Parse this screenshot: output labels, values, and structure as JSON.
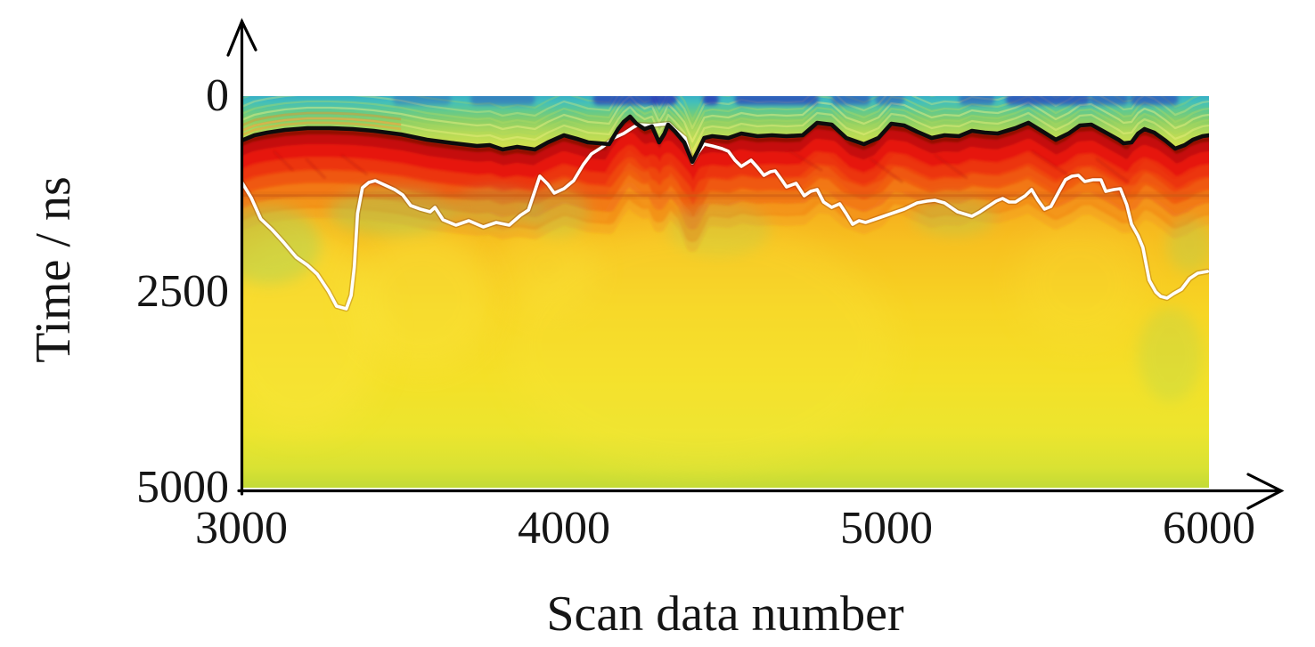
{
  "figure": {
    "background": "#ffffff",
    "kind": "GPR radargram (B-scan) pseudocolor heatmap with two picked horizon lines",
    "axis_color": "#000000",
    "upper_horizon_color": "#0d0d0d",
    "lower_horizon_color": "#ffffff"
  },
  "chart_data": {
    "type": "heatmap",
    "title": "",
    "xlabel": "Scan data number",
    "ylabel": "Time / ns",
    "xlim": [
      3000,
      6000
    ],
    "ylim": [
      0,
      5000
    ],
    "y_axis_direction": "down (0 ns at top, 5000 ns at bottom)",
    "x_ticks": [
      "3000",
      "4000",
      "5000",
      "6000"
    ],
    "x_tick_values": [
      3000,
      4000,
      5000,
      6000
    ],
    "y_ticks": [
      "0",
      "2500",
      "5000"
    ],
    "y_tick_values": [
      0,
      2500,
      5000
    ],
    "grid": false,
    "legend": "none",
    "colormap": "jet-like: dark blue, cyan, green, yellow-green, yellow, orange, red",
    "bands_description": {
      "surface_band": "0 to ~400 ns: cyan-teal grading to green and yellow-green, with terrain-parallel ripple layering; sporadic dark blue patches within the first ~120 ns",
      "reflector_band": "bright red high-amplitude band directly beneath the black horizon, fading through orange with depth",
      "deep_band": "orange grading to yellow with depth; pale yellow-green band near 5000 ns",
      "horizontal_artifact_ns": 1270,
      "vertical_artifact_scan": 4400
    },
    "series": [
      {
        "name": "upper-horizon-pick",
        "style": "solid black line",
        "color": "#0d0d0d",
        "points": [
          [
            3000,
            568
          ],
          [
            3040,
            500
          ],
          [
            3080,
            466
          ],
          [
            3135,
            432
          ],
          [
            3205,
            409
          ],
          [
            3275,
            409
          ],
          [
            3345,
            420
          ],
          [
            3410,
            443
          ],
          [
            3495,
            489
          ],
          [
            3575,
            557
          ],
          [
            3660,
            602
          ],
          [
            3730,
            636
          ],
          [
            3770,
            625
          ],
          [
            3810,
            682
          ],
          [
            3855,
            648
          ],
          [
            3910,
            682
          ],
          [
            3950,
            591
          ],
          [
            4000,
            500
          ],
          [
            4040,
            545
          ],
          [
            4075,
            591
          ],
          [
            4110,
            602
          ],
          [
            4140,
            614
          ],
          [
            4168,
            420
          ],
          [
            4185,
            330
          ],
          [
            4205,
            261
          ],
          [
            4225,
            352
          ],
          [
            4250,
            420
          ],
          [
            4273,
            386
          ],
          [
            4295,
            591
          ],
          [
            4312,
            477
          ],
          [
            4323,
            364
          ],
          [
            4345,
            455
          ],
          [
            4373,
            591
          ],
          [
            4398,
            841
          ],
          [
            4415,
            705
          ],
          [
            4435,
            534
          ],
          [
            4460,
            511
          ],
          [
            4510,
            534
          ],
          [
            4550,
            477
          ],
          [
            4600,
            511
          ],
          [
            4645,
            500
          ],
          [
            4690,
            511
          ],
          [
            4740,
            500
          ],
          [
            4785,
            341
          ],
          [
            4830,
            364
          ],
          [
            4875,
            534
          ],
          [
            4930,
            614
          ],
          [
            4975,
            534
          ],
          [
            5015,
            352
          ],
          [
            5055,
            375
          ],
          [
            5095,
            455
          ],
          [
            5140,
            534
          ],
          [
            5180,
            500
          ],
          [
            5225,
            511
          ],
          [
            5265,
            443
          ],
          [
            5305,
            466
          ],
          [
            5345,
            477
          ],
          [
            5400,
            409
          ],
          [
            5440,
            341
          ],
          [
            5485,
            455
          ],
          [
            5525,
            557
          ],
          [
            5565,
            477
          ],
          [
            5600,
            375
          ],
          [
            5635,
            364
          ],
          [
            5675,
            455
          ],
          [
            5720,
            557
          ],
          [
            5735,
            602
          ],
          [
            5760,
            591
          ],
          [
            5780,
            477
          ],
          [
            5800,
            420
          ],
          [
            5830,
            466
          ],
          [
            5865,
            568
          ],
          [
            5895,
            670
          ],
          [
            5925,
            625
          ],
          [
            5950,
            557
          ],
          [
            5980,
            511
          ],
          [
            6000,
            500
          ]
        ]
      },
      {
        "name": "lower-horizon-pick",
        "style": "solid white line",
        "color": "#ffffff",
        "points": [
          [
            3000,
            1091
          ],
          [
            3030,
            1295
          ],
          [
            3060,
            1568
          ],
          [
            3095,
            1705
          ],
          [
            3130,
            1864
          ],
          [
            3170,
            2057
          ],
          [
            3205,
            2159
          ],
          [
            3235,
            2273
          ],
          [
            3270,
            2489
          ],
          [
            3295,
            2682
          ],
          [
            3325,
            2716
          ],
          [
            3340,
            2545
          ],
          [
            3350,
            2182
          ],
          [
            3360,
            1500
          ],
          [
            3375,
            1170
          ],
          [
            3395,
            1102
          ],
          [
            3415,
            1080
          ],
          [
            3445,
            1136
          ],
          [
            3475,
            1193
          ],
          [
            3500,
            1261
          ],
          [
            3525,
            1398
          ],
          [
            3555,
            1443
          ],
          [
            3585,
            1477
          ],
          [
            3600,
            1420
          ],
          [
            3625,
            1580
          ],
          [
            3665,
            1648
          ],
          [
            3705,
            1591
          ],
          [
            3750,
            1670
          ],
          [
            3790,
            1614
          ],
          [
            3830,
            1648
          ],
          [
            3865,
            1523
          ],
          [
            3890,
            1455
          ],
          [
            3925,
            1023
          ],
          [
            3950,
            1125
          ],
          [
            3970,
            1239
          ],
          [
            4000,
            1182
          ],
          [
            4030,
            1080
          ],
          [
            4060,
            875
          ],
          [
            4085,
            739
          ],
          [
            4120,
            648
          ],
          [
            4155,
            534
          ],
          [
            4185,
            477
          ],
          [
            4215,
            398
          ],
          [
            4230,
            364
          ],
          [
            4270,
            375
          ],
          [
            4295,
            364
          ],
          [
            4325,
            352
          ],
          [
            4345,
            432
          ],
          [
            4375,
            534
          ],
          [
            4398,
            852
          ],
          [
            4415,
            727
          ],
          [
            4435,
            614
          ],
          [
            4460,
            636
          ],
          [
            4490,
            670
          ],
          [
            4510,
            705
          ],
          [
            4530,
            818
          ],
          [
            4550,
            898
          ],
          [
            4580,
            818
          ],
          [
            4600,
            909
          ],
          [
            4620,
            1011
          ],
          [
            4640,
            966
          ],
          [
            4655,
            955
          ],
          [
            4675,
            1068
          ],
          [
            4690,
            1159
          ],
          [
            4720,
            1114
          ],
          [
            4745,
            1273
          ],
          [
            4765,
            1216
          ],
          [
            4785,
            1193
          ],
          [
            4805,
            1352
          ],
          [
            4830,
            1420
          ],
          [
            4855,
            1375
          ],
          [
            4875,
            1500
          ],
          [
            4895,
            1636
          ],
          [
            4915,
            1591
          ],
          [
            4935,
            1614
          ],
          [
            4975,
            1557
          ],
          [
            5015,
            1500
          ],
          [
            5055,
            1443
          ],
          [
            5095,
            1364
          ],
          [
            5125,
            1341
          ],
          [
            5150,
            1330
          ],
          [
            5180,
            1364
          ],
          [
            5220,
            1477
          ],
          [
            5265,
            1534
          ],
          [
            5290,
            1477
          ],
          [
            5315,
            1409
          ],
          [
            5340,
            1341
          ],
          [
            5360,
            1307
          ],
          [
            5380,
            1352
          ],
          [
            5400,
            1352
          ],
          [
            5430,
            1273
          ],
          [
            5450,
            1193
          ],
          [
            5470,
            1330
          ],
          [
            5490,
            1443
          ],
          [
            5510,
            1409
          ],
          [
            5535,
            1216
          ],
          [
            5555,
            1068
          ],
          [
            5575,
            1023
          ],
          [
            5595,
            1011
          ],
          [
            5615,
            1091
          ],
          [
            5640,
            1068
          ],
          [
            5665,
            1068
          ],
          [
            5680,
            1216
          ],
          [
            5705,
            1193
          ],
          [
            5725,
            1182
          ],
          [
            5745,
            1386
          ],
          [
            5760,
            1636
          ],
          [
            5780,
            1784
          ],
          [
            5795,
            1932
          ],
          [
            5815,
            2352
          ],
          [
            5835,
            2500
          ],
          [
            5850,
            2557
          ],
          [
            5870,
            2580
          ],
          [
            5890,
            2523
          ],
          [
            5915,
            2466
          ],
          [
            5940,
            2330
          ],
          [
            5965,
            2261
          ],
          [
            5995,
            2239
          ]
        ]
      }
    ],
    "render": {
      "depth_gradient": [
        [
          0,
          "#f07a15"
        ],
        [
          0.1,
          "#f28a1a"
        ],
        [
          0.22,
          "#f5a31d"
        ],
        [
          0.38,
          "#f7c120"
        ],
        [
          0.55,
          "#f7d524"
        ],
        [
          0.72,
          "#f4e028"
        ],
        [
          0.86,
          "#ece52e"
        ],
        [
          0.95,
          "#d9e233"
        ],
        [
          1,
          "#c3da36"
        ]
      ],
      "surface_gradient": [
        [
          0,
          "#38b0c6"
        ],
        [
          0.08,
          "#43bfba"
        ],
        [
          0.2,
          "#63c98c"
        ],
        [
          0.33,
          "#8ccf66"
        ],
        [
          0.48,
          "#b3d958"
        ],
        [
          0.62,
          "#cbdf50"
        ],
        [
          0.8,
          "#dbe24b"
        ],
        [
          1,
          "#e2e44a"
        ]
      ],
      "red_band_strokes": [
        [
          6,
          "#8f0c05",
          10,
          1
        ],
        [
          14,
          "#c51107",
          14,
          1
        ],
        [
          26,
          "#e61708",
          16,
          1
        ],
        [
          40,
          "#ec2e0c",
          16,
          0.95
        ],
        [
          54,
          "#ef4a10",
          16,
          0.85
        ],
        [
          68,
          "#f16413",
          16,
          0.7
        ],
        [
          82,
          "#f17a16",
          16,
          0.5
        ],
        [
          94,
          "#f28c1a",
          14,
          0.3
        ]
      ],
      "ripple_offsets": [
        [
          8,
          "#eaf07e",
          0.45
        ],
        [
          14,
          "#a8d75e",
          0.4
        ],
        [
          20,
          "#f0f285",
          0.45
        ],
        [
          27,
          "#b2db60",
          0.38
        ],
        [
          35,
          "#e4ee78",
          0.35
        ],
        [
          44,
          "#a8d75e",
          0.3
        ]
      ],
      "left_orange_ripples": {
        "scan_max": 3560,
        "offsets": [
          [
            4,
            "#f59f33",
            0.5
          ],
          [
            9,
            "#ee8526",
            0.45
          ],
          [
            15,
            "#e87b22",
            0.35
          ]
        ]
      },
      "blue_color": "#2c3eb8",
      "blue_patches": [
        [
          3560,
          180,
          0.3
        ],
        [
          3810,
          200,
          0.4
        ],
        [
          4190,
          200,
          0.75
        ],
        [
          4310,
          80,
          0.85
        ],
        [
          4455,
          50,
          0.85
        ],
        [
          4660,
          260,
          0.7
        ],
        [
          4890,
          120,
          0.55
        ],
        [
          5010,
          90,
          0.45
        ],
        [
          5280,
          110,
          0.5
        ],
        [
          5500,
          260,
          0.7
        ],
        [
          5690,
          120,
          0.55
        ],
        [
          5830,
          150,
          0.6
        ]
      ],
      "green_color": "#9ed45e",
      "green_patches": [
        [
          3085,
          1900,
          160,
          500,
          0.4
        ],
        [
          3470,
          1480,
          200,
          300,
          0.4
        ],
        [
          3790,
          1430,
          140,
          260,
          0.3
        ],
        [
          3980,
          1480,
          100,
          320,
          0.28
        ],
        [
          4480,
          1700,
          160,
          350,
          0.22
        ],
        [
          5210,
          1530,
          130,
          260,
          0.3
        ],
        [
          5940,
          1900,
          70,
          350,
          0.3
        ],
        [
          5880,
          3300,
          100,
          600,
          0.25
        ]
      ],
      "yellow_color": "#f9e53a",
      "yellow_patches": [
        [
          3180,
          3000,
          260,
          1300,
          0.5
        ],
        [
          3560,
          2600,
          220,
          900,
          0.45
        ],
        [
          3950,
          2200,
          150,
          600,
          0.3
        ],
        [
          4420,
          3200,
          600,
          1600,
          0.25
        ],
        [
          5600,
          2400,
          200,
          800,
          0.2
        ]
      ],
      "scratch_color": "#b01108",
      "scratches": [
        [
          3100,
          700,
          3160,
          950
        ],
        [
          3200,
          800,
          3260,
          1050
        ],
        [
          3310,
          750,
          3390,
          1000
        ],
        [
          4700,
          700,
          4800,
          950
        ],
        [
          4950,
          800,
          5050,
          1100
        ],
        [
          5150,
          750,
          5250,
          1050
        ],
        [
          5450,
          700,
          5560,
          1000
        ],
        [
          5650,
          800,
          5750,
          1100
        ]
      ],
      "horizontal_artifact": {
        "time": 1270,
        "color": "#c85a14"
      },
      "vertical_artifact": {
        "scan": 4400,
        "time_range": [
          950,
          4000
        ],
        "color": "#ee7e18"
      }
    }
  }
}
